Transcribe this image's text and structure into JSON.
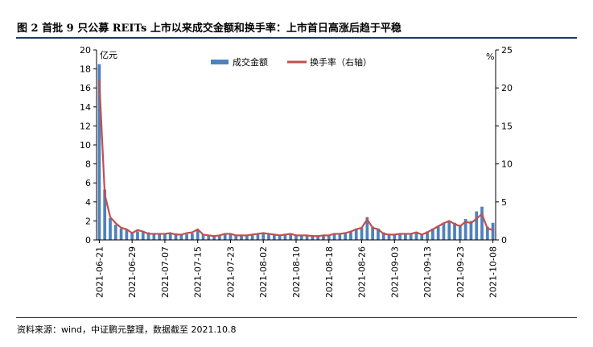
{
  "figure": {
    "title": "图 2  首批 9 只公募 REITs 上市以来成交金额和换手率：上市首日高涨后趋于平稳",
    "source": "资料来源：wind，中证鹏元整理，数据截至 2021.10.8"
  },
  "colors": {
    "bar": "#4f81bd",
    "line": "#c0504d",
    "rule": "#1f3a5f"
  },
  "chart_data": {
    "type": "bar",
    "left_axis_unit": "亿元",
    "right_axis_unit": "%",
    "ylim_left": [
      0,
      20
    ],
    "yticks_left": [
      0,
      2,
      4,
      6,
      8,
      10,
      12,
      14,
      16,
      18,
      20
    ],
    "ylim_right": [
      0,
      25
    ],
    "yticks_right": [
      0,
      5,
      10,
      15,
      20,
      25
    ],
    "legend_position": "top-center",
    "x_tick_labels": [
      "2021-06-21",
      "2021-06-29",
      "2021-07-07",
      "2021-07-15",
      "2021-07-23",
      "2021-08-02",
      "2021-08-10",
      "2021-08-18",
      "2021-08-26",
      "2021-09-03",
      "2021-09-13",
      "2021-09-23",
      "2021-10-08"
    ],
    "categories": [
      "2021-06-21",
      "2021-06-22",
      "2021-06-23",
      "2021-06-24",
      "2021-06-25",
      "2021-06-28",
      "2021-06-29",
      "2021-06-30",
      "2021-07-01",
      "2021-07-02",
      "2021-07-05",
      "2021-07-06",
      "2021-07-07",
      "2021-07-08",
      "2021-07-09",
      "2021-07-12",
      "2021-07-13",
      "2021-07-14",
      "2021-07-15",
      "2021-07-16",
      "2021-07-19",
      "2021-07-20",
      "2021-07-21",
      "2021-07-22",
      "2021-07-23",
      "2021-07-26",
      "2021-07-27",
      "2021-07-28",
      "2021-07-29",
      "2021-07-30",
      "2021-08-02",
      "2021-08-03",
      "2021-08-04",
      "2021-08-05",
      "2021-08-06",
      "2021-08-09",
      "2021-08-10",
      "2021-08-11",
      "2021-08-12",
      "2021-08-13",
      "2021-08-16",
      "2021-08-17",
      "2021-08-18",
      "2021-08-19",
      "2021-08-20",
      "2021-08-23",
      "2021-08-24",
      "2021-08-25",
      "2021-08-26",
      "2021-08-27",
      "2021-08-30",
      "2021-08-31",
      "2021-09-01",
      "2021-09-02",
      "2021-09-03",
      "2021-09-06",
      "2021-09-07",
      "2021-09-08",
      "2021-09-09",
      "2021-09-10",
      "2021-09-13",
      "2021-09-14",
      "2021-09-15",
      "2021-09-16",
      "2021-09-17",
      "2021-09-22",
      "2021-09-23",
      "2021-09-24",
      "2021-09-27",
      "2021-09-28",
      "2021-09-29",
      "2021-09-30",
      "2021-10-08"
    ],
    "series": [
      {
        "name": "成交金额",
        "kind": "bar",
        "axis": "left",
        "values": [
          18.5,
          5.3,
          2.3,
          1.6,
          1.2,
          1.1,
          0.8,
          0.9,
          0.9,
          0.8,
          0.7,
          0.7,
          0.7,
          0.7,
          0.7,
          0.6,
          0.6,
          0.7,
          1.1,
          0.6,
          0.5,
          0.5,
          0.5,
          0.6,
          0.6,
          0.5,
          0.5,
          0.5,
          0.5,
          0.6,
          0.7,
          0.6,
          0.6,
          0.5,
          0.5,
          0.6,
          0.5,
          0.5,
          0.5,
          0.5,
          0.4,
          0.5,
          0.5,
          0.6,
          0.6,
          0.7,
          0.9,
          1.2,
          1.3,
          2.4,
          1.4,
          1.2,
          0.8,
          0.6,
          0.6,
          0.6,
          0.6,
          0.6,
          0.8,
          0.6,
          0.9,
          1.2,
          1.5,
          1.8,
          2.0,
          1.8,
          1.6,
          2.2,
          2.0,
          3.0,
          3.5,
          1.4,
          1.8
        ]
      },
      {
        "name": "换手率（右轴）",
        "kind": "line",
        "axis": "right",
        "values": [
          21.0,
          6.0,
          3.0,
          2.2,
          1.6,
          1.4,
          0.9,
          1.3,
          1.1,
          0.8,
          0.8,
          0.8,
          0.8,
          0.9,
          0.7,
          0.7,
          0.9,
          1.0,
          1.4,
          0.7,
          0.6,
          0.5,
          0.6,
          0.8,
          0.8,
          0.6,
          0.6,
          0.6,
          0.7,
          0.8,
          0.9,
          0.8,
          0.7,
          0.6,
          0.7,
          0.8,
          0.6,
          0.6,
          0.6,
          0.5,
          0.5,
          0.6,
          0.6,
          0.8,
          0.8,
          0.9,
          1.1,
          1.4,
          1.6,
          2.7,
          1.6,
          1.4,
          0.8,
          0.7,
          0.7,
          0.8,
          0.8,
          0.8,
          1.0,
          0.7,
          1.0,
          1.4,
          1.8,
          2.2,
          2.5,
          2.1,
          1.8,
          2.4,
          2.2,
          2.8,
          3.4,
          1.5,
          1.3
        ]
      }
    ]
  }
}
